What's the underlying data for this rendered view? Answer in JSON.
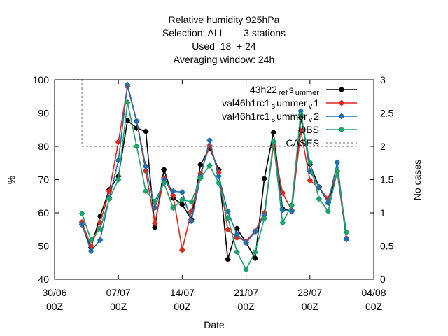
{
  "chart_data": {
    "type": "line",
    "title_lines": [
      "Relative humidity 925hPa",
      "Selection: ALL       3 stations",
      "Used  18  + 24",
      "Averaging window: 24h"
    ],
    "xlabel": "Date",
    "ylabel": "%",
    "y2label": "No cases",
    "xlim": [
      0,
      35
    ],
    "ylim": [
      40,
      100
    ],
    "y2lim": [
      0,
      3
    ],
    "x_ticks": [
      {
        "x": 0,
        "line1": "30/06",
        "line2": "00Z"
      },
      {
        "x": 7,
        "line1": "07/07",
        "line2": "00Z"
      },
      {
        "x": 14,
        "line1": "14/07",
        "line2": "00Z"
      },
      {
        "x": 21,
        "line1": "21/07",
        "line2": "00Z"
      },
      {
        "x": 28,
        "line1": "28/07",
        "line2": "00Z"
      },
      {
        "x": 35,
        "line1": "04/08",
        "line2": "00Z"
      }
    ],
    "y_ticks": [
      40,
      50,
      60,
      70,
      80,
      90,
      100
    ],
    "y2_ticks": [
      "0",
      "0.5",
      "1",
      "1.5",
      "2",
      "2.5",
      "3"
    ],
    "y2_tick_values": [
      0,
      0.5,
      1,
      1.5,
      2,
      2.5,
      3
    ],
    "legend_position": "top-right",
    "x": [
      3,
      4,
      5,
      6,
      7,
      8,
      9,
      10,
      11,
      12,
      13,
      14,
      15,
      16,
      17,
      18,
      19,
      20,
      21,
      22,
      23,
      24,
      25,
      26,
      27,
      28,
      29,
      30,
      31,
      32,
      33
    ],
    "series": [
      {
        "name": "43h22_ref_summer",
        "legend_parts": [
          "43h22",
          "ref",
          "s",
          "ummer"
        ],
        "color": "#000000",
        "marker": "circle",
        "values": [
          56.5,
          49.5,
          59,
          67,
          71,
          87.8,
          85.5,
          84.5,
          55.6,
          73,
          64.5,
          62.5,
          58,
          74.5,
          79.5,
          73,
          46,
          55.3,
          51,
          46.3,
          70.3,
          84.2,
          61.2,
          60.5,
          88.6,
          74.6,
          67.8,
          63,
          72.5,
          52.3,
          null
        ]
      },
      {
        "name": "val46h1rc1_summer_v1",
        "legend_parts": [
          "val46h1rc1",
          "s",
          "ummer",
          "v",
          "1"
        ],
        "color": "#e3261a",
        "marker": "circle",
        "values": [
          57.2,
          50,
          57,
          66.5,
          81.3,
          98,
          87.5,
          72.6,
          56.8,
          70.5,
          65.2,
          48.8,
          60.5,
          71.8,
          80.2,
          72.2,
          55,
          52.5,
          51.5,
          54.5,
          60,
          80,
          66,
          60.8,
          84.7,
          69.8,
          67.5,
          64.3,
          72.5,
          52.3,
          null
        ]
      },
      {
        "name": "val46h1rc1_summer_v2",
        "legend_parts": [
          "val46h1rc1",
          "s",
          "ummer",
          "v",
          "2"
        ],
        "color": "#1f6fad",
        "marker": "circle",
        "values": [
          56.5,
          48.5,
          51.8,
          64.5,
          75.8,
          98.5,
          87.6,
          74,
          61.5,
          70,
          66.5,
          66.2,
          57.5,
          70.8,
          81.8,
          71,
          60.4,
          53.5,
          51,
          54.3,
          59.3,
          81.3,
          60.8,
          60.5,
          90.6,
          72.6,
          67.8,
          63,
          75.2,
          52,
          null
        ]
      },
      {
        "name": "OBS",
        "legend_parts": [
          "OBS"
        ],
        "color": "#1aa36a",
        "marker": "circle",
        "values": [
          59.8,
          51.8,
          55.2,
          64.2,
          70,
          93.2,
          80,
          66.5,
          63.5,
          69,
          61.5,
          64,
          63.3,
          70.5,
          74.2,
          69,
          58.5,
          48.2,
          43,
          48.2,
          58.3,
          81.5,
          57,
          62.3,
          89.5,
          75.2,
          64.2,
          60.5,
          72.5,
          54.2,
          null
        ]
      }
    ],
    "cases_series": {
      "name": "CASES",
      "legend_parts": [
        "CASES"
      ],
      "color": "#999999",
      "axis": "y2",
      "x": [
        2,
        3,
        3,
        33
      ],
      "values": [
        3,
        3,
        2,
        2
      ]
    }
  }
}
